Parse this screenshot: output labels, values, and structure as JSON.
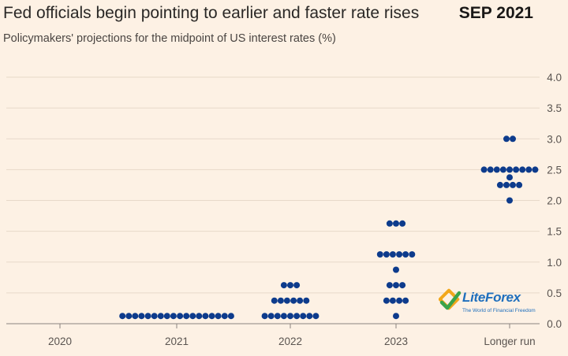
{
  "header": {
    "title": "Fed officials begin pointing to earlier and faster rate rises",
    "badge": "SEP 2021",
    "subtitle": "Policymakers' projections for the midpoint of US interest rates (%)"
  },
  "watermark": {
    "brand": "LiteForex",
    "tagline": "The World of Financial Freedom"
  },
  "colors": {
    "background": "#fdf1e4",
    "dot": "#0d3b8c",
    "grid": "#e7d9c9",
    "axis": "#8a8480"
  },
  "chart_data": {
    "type": "scatter",
    "title": "Fed officials begin pointing to earlier and faster rate rises",
    "subtitle": "Policymakers' projections for the midpoint of US interest rates (%)",
    "categories": [
      "2020",
      "2021",
      "2022",
      "2023",
      "Longer run"
    ],
    "ylim": [
      0,
      4.0
    ],
    "yticks": [
      0.0,
      0.5,
      1.0,
      1.5,
      2.0,
      2.5,
      3.0,
      3.5,
      4.0
    ],
    "ytick_labels": [
      "0.0",
      "0.5",
      "1.0",
      "1.5",
      "2.0",
      "2.5",
      "3.0",
      "3.5",
      "4.0"
    ],
    "y_axis_side": "right",
    "grid": true,
    "dots": [
      {
        "category": "2021",
        "value": 0.125,
        "count": 18
      },
      {
        "category": "2022",
        "value": 0.125,
        "count": 9
      },
      {
        "category": "2022",
        "value": 0.375,
        "count": 6
      },
      {
        "category": "2022",
        "value": 0.625,
        "count": 3
      },
      {
        "category": "2023",
        "value": 0.125,
        "count": 1
      },
      {
        "category": "2023",
        "value": 0.375,
        "count": 4
      },
      {
        "category": "2023",
        "value": 0.625,
        "count": 3
      },
      {
        "category": "2023",
        "value": 0.875,
        "count": 1
      },
      {
        "category": "2023",
        "value": 1.125,
        "count": 6
      },
      {
        "category": "2023",
        "value": 1.625,
        "count": 3
      },
      {
        "category": "Longer run",
        "value": 2.0,
        "count": 1
      },
      {
        "category": "Longer run",
        "value": 2.25,
        "count": 4
      },
      {
        "category": "Longer run",
        "value": 2.375,
        "count": 1
      },
      {
        "category": "Longer run",
        "value": 2.5,
        "count": 9
      },
      {
        "category": "Longer run",
        "value": 3.0,
        "count": 2
      }
    ]
  }
}
